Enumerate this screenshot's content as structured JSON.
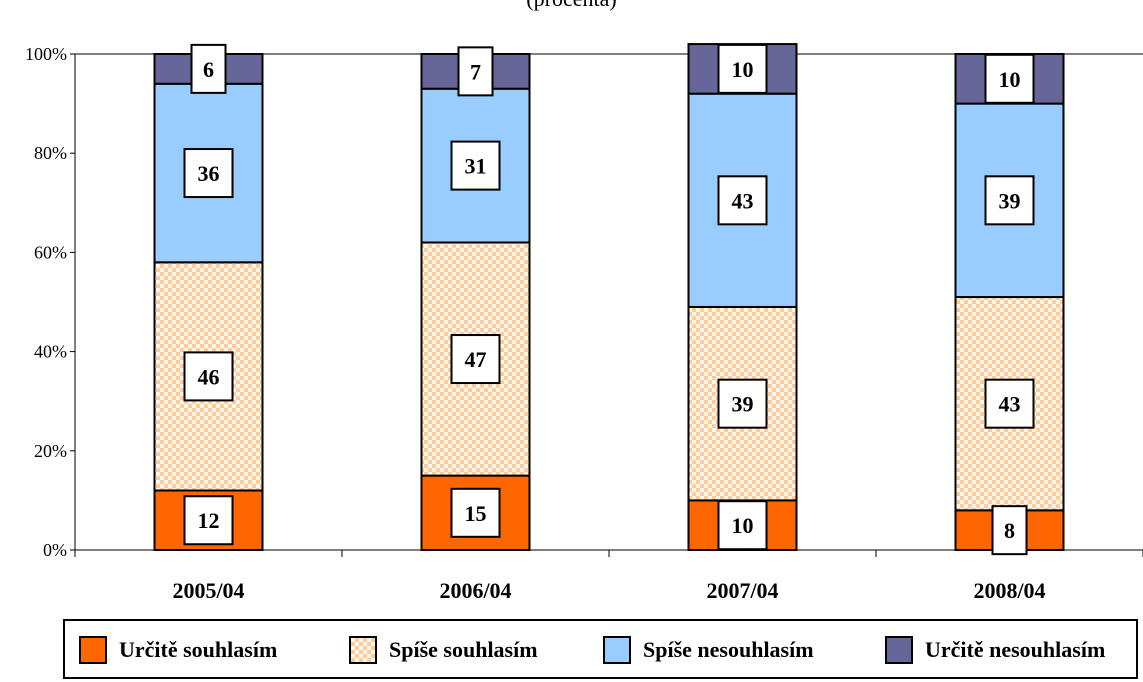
{
  "chart_data": {
    "type": "bar",
    "stacked": true,
    "percent": true,
    "subtitle": "(procenta)",
    "categories": [
      "2005/04",
      "2006/04",
      "2007/04",
      "2008/04"
    ],
    "series": [
      {
        "name": "Určitě souhlasím",
        "values": [
          12,
          15,
          10,
          8
        ],
        "color": "#ff6600",
        "pattern": "solid"
      },
      {
        "name": "Spíše souhlasím",
        "values": [
          46,
          47,
          39,
          43
        ],
        "color": "#ffcc99",
        "pattern": "dotted"
      },
      {
        "name": "Spíše nesouhlasím",
        "values": [
          36,
          31,
          43,
          39
        ],
        "color": "#99ccff",
        "pattern": "solid"
      },
      {
        "name": "Určitě nesouhlasím",
        "values": [
          6,
          7,
          10,
          10
        ],
        "color": "#666699",
        "pattern": "solid"
      }
    ],
    "yticks": [
      "0%",
      "20%",
      "40%",
      "60%",
      "80%",
      "100%"
    ],
    "ylim": [
      0,
      100
    ],
    "grid": false,
    "legend_position": "bottom"
  }
}
